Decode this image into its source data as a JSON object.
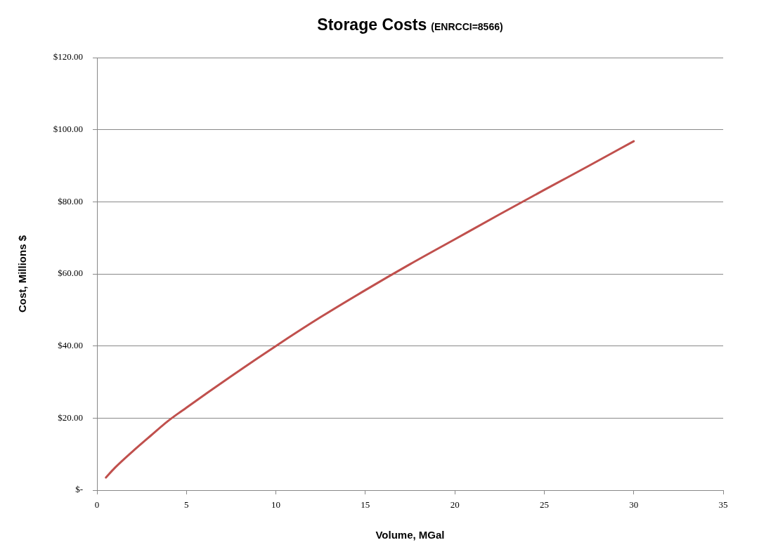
{
  "chart_data": {
    "type": "line",
    "title": "Storage Costs",
    "subtitle": "(ENRCCI=8566)",
    "xlabel": "Volume, MGal",
    "ylabel": "Cost, Millions $",
    "x": [
      0.5,
      1,
      2,
      3,
      4,
      5,
      7.5,
      10,
      12.5,
      15,
      17.5,
      20,
      22.5,
      25,
      27.5,
      30
    ],
    "series": [
      {
        "color": "#c0504d",
        "values": [
          3.5,
          6.2,
          10.8,
          15.1,
          19.3,
          22.9,
          31.6,
          40,
          48,
          55.5,
          62.7,
          69.6,
          76.5,
          83.3,
          90,
          96.8
        ]
      }
    ],
    "xlim": [
      0,
      35
    ],
    "xticks": [
      0,
      5,
      10,
      15,
      20,
      25,
      30,
      35
    ],
    "ylim": [
      0,
      120
    ],
    "yticks": [
      {
        "value": 0,
        "label": "$-"
      },
      {
        "value": 20,
        "label": "$20.00"
      },
      {
        "value": 40,
        "label": "$40.00"
      },
      {
        "value": 60,
        "label": "$60.00"
      },
      {
        "value": 80,
        "label": "$80.00"
      },
      {
        "value": 100,
        "label": "$100.00"
      },
      {
        "value": 120,
        "label": "$120.00"
      }
    ],
    "grid": "y",
    "legend": false,
    "marker": "none",
    "line_style": "solid"
  }
}
